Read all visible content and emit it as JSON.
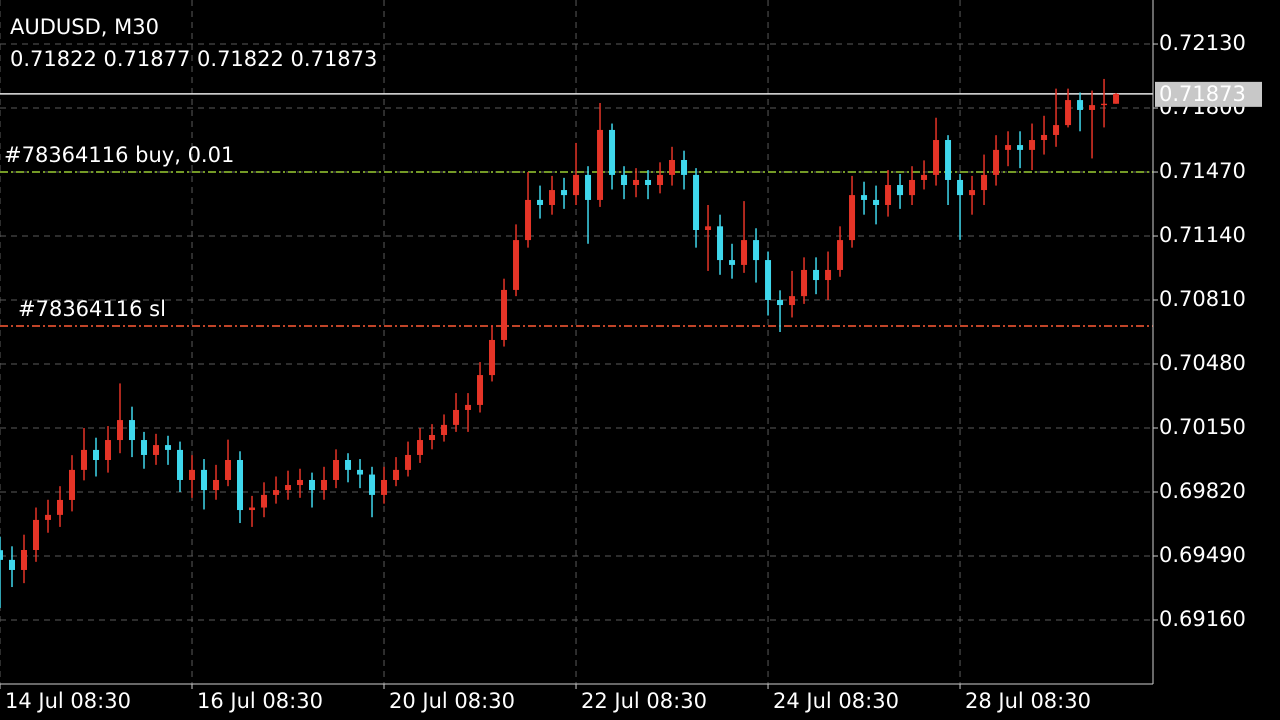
{
  "chart_data": {
    "type": "candlestick",
    "title": "AUDUSD, M30",
    "subtitle": "0.71822 0.71877 0.71822 0.71873",
    "up_color": "#e53427",
    "down_color": "#3fd7ec",
    "grid": true,
    "xlim": [
      0,
      96.08
    ],
    "xticks": [
      {
        "value": 0,
        "label": "14 Jul 08:30"
      },
      {
        "value": 16,
        "label": "16 Jul 08:30"
      },
      {
        "value": 32,
        "label": "20 Jul 08:30"
      },
      {
        "value": 48,
        "label": "22 Jul 08:30"
      },
      {
        "value": 64,
        "label": "24 Jul 08:30"
      },
      {
        "value": 80,
        "label": "28 Jul 08:30"
      }
    ],
    "ylim": [
      0.6883,
      0.72357
    ],
    "yticks": [
      {
        "value": 0.7213,
        "label": "0.72130"
      },
      {
        "value": 0.718,
        "label": "0.71800"
      },
      {
        "value": 0.7147,
        "label": "0.71470"
      },
      {
        "value": 0.7114,
        "label": "0.71140"
      },
      {
        "value": 0.7081,
        "label": "0.70810"
      },
      {
        "value": 0.7048,
        "label": "0.70480"
      },
      {
        "value": 0.7015,
        "label": "0.70150"
      },
      {
        "value": 0.6982,
        "label": "0.69820"
      },
      {
        "value": 0.6949,
        "label": "0.69490"
      },
      {
        "value": 0.6916,
        "label": "0.69160"
      }
    ],
    "last_price": 0.71873,
    "levels": [
      {
        "label": "#78364116 buy, 0.01",
        "value": 0.7147,
        "color": "#9acd32"
      },
      {
        "label": "#78364116 sl",
        "value": 0.70676,
        "color": "#ff5a36"
      }
    ],
    "open": [
      0.6952,
      0.6947,
      0.69418,
      0.69521,
      0.69676,
      0.69702,
      0.69779,
      0.69934,
      0.70037,
      0.69985,
      0.70088,
      0.70191,
      0.70088,
      0.70011,
      0.70062,
      0.70037,
      0.69882,
      0.69934,
      0.6983,
      0.69882,
      0.69985,
      0.69727,
      0.6974,
      0.69805,
      0.6983,
      0.69856,
      0.69882,
      0.6983,
      0.69882,
      0.69985,
      0.69934,
      0.6991,
      0.69805,
      0.69882,
      0.69934,
      0.70011,
      0.70088,
      0.70114,
      0.70166,
      0.70243,
      0.70269,
      0.70423,
      0.70604,
      0.70862,
      0.71119,
      0.71326,
      0.713,
      0.71377,
      0.71351,
      0.71455,
      0.71326,
      0.71687,
      0.71455,
      0.71403,
      0.71429,
      0.71403,
      0.71455,
      0.71532,
      0.71455,
      0.71171,
      0.7119,
      0.71016,
      0.70991,
      0.71119,
      0.71016,
      0.7081,
      0.70784,
      0.7083,
      0.70965,
      0.70913,
      0.70965,
      0.71119,
      0.71351,
      0.71326,
      0.713,
      0.71403,
      0.71351,
      0.71429,
      0.71455,
      0.71635,
      0.71429,
      0.71351,
      0.71377,
      0.71455,
      0.71584,
      0.71609,
      0.71584,
      0.71635,
      0.71661,
      0.71712,
      0.71841,
      0.7179,
      0.71815,
      0.71822
    ],
    "high": [
      0.6959,
      0.6954,
      0.696,
      0.6974,
      0.6978,
      0.6985,
      0.7001,
      0.7015,
      0.701,
      0.7016,
      0.7038,
      0.7026,
      0.7013,
      0.7012,
      0.7011,
      0.7008,
      0.7001,
      0.6999,
      0.6996,
      0.7009,
      0.7003,
      0.698,
      0.6987,
      0.699,
      0.6993,
      0.6994,
      0.6992,
      0.6995,
      0.7004,
      0.7002,
      0.6999,
      0.6995,
      0.6995,
      0.7,
      0.7008,
      0.7015,
      0.7017,
      0.7022,
      0.7033,
      0.7033,
      0.7049,
      0.7068,
      0.7092,
      0.712,
      0.7147,
      0.714,
      0.7145,
      0.7144,
      0.7162,
      0.715,
      0.71826,
      0.7172,
      0.715,
      0.7149,
      0.7148,
      0.7152,
      0.716,
      0.7158,
      0.7149,
      0.713,
      0.7125,
      0.711,
      0.7132,
      0.7118,
      0.7106,
      0.7086,
      0.7096,
      0.7103,
      0.7103,
      0.7106,
      0.7119,
      0.7145,
      0.7142,
      0.714,
      0.7148,
      0.7146,
      0.715,
      0.7153,
      0.7175,
      0.7166,
      0.7146,
      0.7145,
      0.7156,
      0.7166,
      0.7168,
      0.7168,
      0.7172,
      0.7176,
      0.719,
      0.719,
      0.7188,
      0.7189,
      0.7195,
      0.71877
    ],
    "low": [
      0.69222,
      0.6933,
      0.6935,
      0.6946,
      0.6961,
      0.6964,
      0.6972,
      0.6988,
      0.699,
      0.6992,
      0.7002,
      0.7,
      0.6994,
      0.6996,
      0.6996,
      0.6982,
      0.6979,
      0.6973,
      0.6978,
      0.6985,
      0.6966,
      0.6964,
      0.6969,
      0.6976,
      0.6978,
      0.6979,
      0.6974,
      0.6978,
      0.6984,
      0.6987,
      0.6984,
      0.6969,
      0.6976,
      0.6985,
      0.699,
      0.6997,
      0.7004,
      0.7008,
      0.7013,
      0.7013,
      0.7023,
      0.7039,
      0.7057,
      0.7083,
      0.7108,
      0.7123,
      0.7125,
      0.7128,
      0.713,
      0.711,
      0.7129,
      0.7138,
      0.7133,
      0.7134,
      0.7133,
      0.7136,
      0.714,
      0.7138,
      0.7108,
      0.7096,
      0.7094,
      0.7092,
      0.7095,
      0.709,
      0.7073,
      0.70645,
      0.7072,
      0.7079,
      0.7084,
      0.7081,
      0.7093,
      0.7108,
      0.7125,
      0.712,
      0.7124,
      0.7128,
      0.713,
      0.7138,
      0.714,
      0.713,
      0.7112,
      0.7125,
      0.713,
      0.714,
      0.715,
      0.7149,
      0.7148,
      0.7156,
      0.716,
      0.717,
      0.7168,
      0.7154,
      0.717,
      0.71822
    ],
    "close": [
      0.6947,
      0.69418,
      0.69521,
      0.69676,
      0.69702,
      0.69779,
      0.69934,
      0.70037,
      0.69985,
      0.70088,
      0.70191,
      0.70088,
      0.70011,
      0.70062,
      0.70037,
      0.69882,
      0.69934,
      0.6983,
      0.69882,
      0.69985,
      0.69727,
      0.6974,
      0.69805,
      0.6983,
      0.69856,
      0.69882,
      0.6983,
      0.69882,
      0.69985,
      0.69934,
      0.6991,
      0.69805,
      0.69882,
      0.69934,
      0.70011,
      0.70088,
      0.70114,
      0.70166,
      0.70243,
      0.70269,
      0.70423,
      0.70604,
      0.70862,
      0.71119,
      0.71326,
      0.713,
      0.71377,
      0.71351,
      0.71455,
      0.71326,
      0.71687,
      0.71455,
      0.71403,
      0.71429,
      0.71403,
      0.71455,
      0.71532,
      0.71455,
      0.71171,
      0.7119,
      0.71016,
      0.70991,
      0.71119,
      0.71016,
      0.7081,
      0.70784,
      0.7083,
      0.70965,
      0.70913,
      0.70965,
      0.71119,
      0.71351,
      0.71326,
      0.713,
      0.71403,
      0.71351,
      0.71429,
      0.71455,
      0.71635,
      0.71429,
      0.71351,
      0.71377,
      0.71455,
      0.71584,
      0.71609,
      0.71584,
      0.71635,
      0.71661,
      0.71712,
      0.71841,
      0.7179,
      0.71815,
      0.71822,
      0.71873
    ]
  }
}
